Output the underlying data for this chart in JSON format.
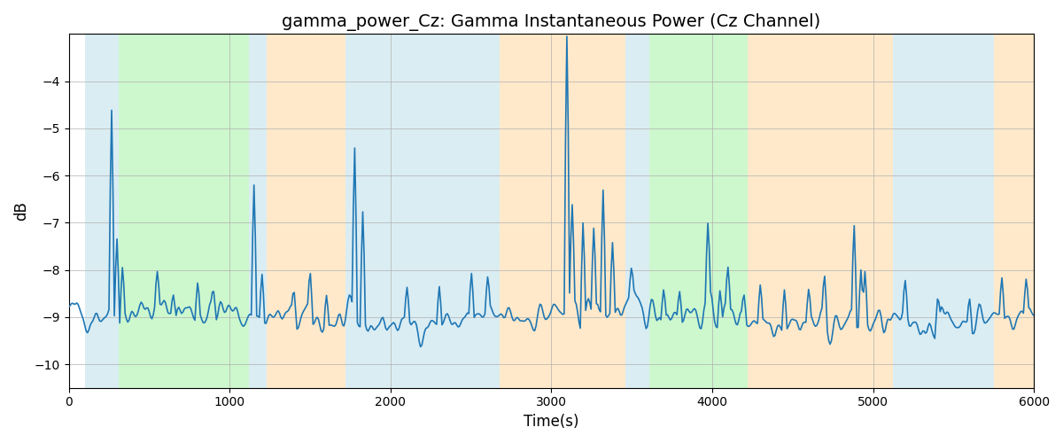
{
  "title": "gamma_power_Cz: Gamma Instantaneous Power (Cz Channel)",
  "xlabel": "Time(s)",
  "ylabel": "dB",
  "xlim": [
    0,
    6000
  ],
  "ylim": [
    -10.5,
    -3.0
  ],
  "yticks": [
    -10,
    -9,
    -8,
    -7,
    -6,
    -5,
    -4
  ],
  "line_color": "#1f77b4",
  "line_width": 1.2,
  "bg_regions": [
    {
      "xmin": 100,
      "xmax": 310,
      "color": "#add8e6",
      "alpha": 0.45
    },
    {
      "xmin": 310,
      "xmax": 1120,
      "color": "#90ee90",
      "alpha": 0.45
    },
    {
      "xmin": 1120,
      "xmax": 1230,
      "color": "#add8e6",
      "alpha": 0.45
    },
    {
      "xmin": 1230,
      "xmax": 1720,
      "color": "#ffd8a0",
      "alpha": 0.55
    },
    {
      "xmin": 1720,
      "xmax": 2680,
      "color": "#add8e6",
      "alpha": 0.45
    },
    {
      "xmin": 2680,
      "xmax": 3460,
      "color": "#ffd8a0",
      "alpha": 0.55
    },
    {
      "xmin": 3460,
      "xmax": 3610,
      "color": "#add8e6",
      "alpha": 0.45
    },
    {
      "xmin": 3610,
      "xmax": 4220,
      "color": "#90ee90",
      "alpha": 0.45
    },
    {
      "xmin": 4220,
      "xmax": 5120,
      "color": "#ffd8a0",
      "alpha": 0.55
    },
    {
      "xmin": 5120,
      "xmax": 5750,
      "color": "#add8e6",
      "alpha": 0.45
    },
    {
      "xmin": 5750,
      "xmax": 6000,
      "color": "#ffd8a0",
      "alpha": 0.55
    }
  ],
  "seed": 42,
  "n_points": 720,
  "grid_color": "#b0b0b0",
  "title_fontsize": 14
}
